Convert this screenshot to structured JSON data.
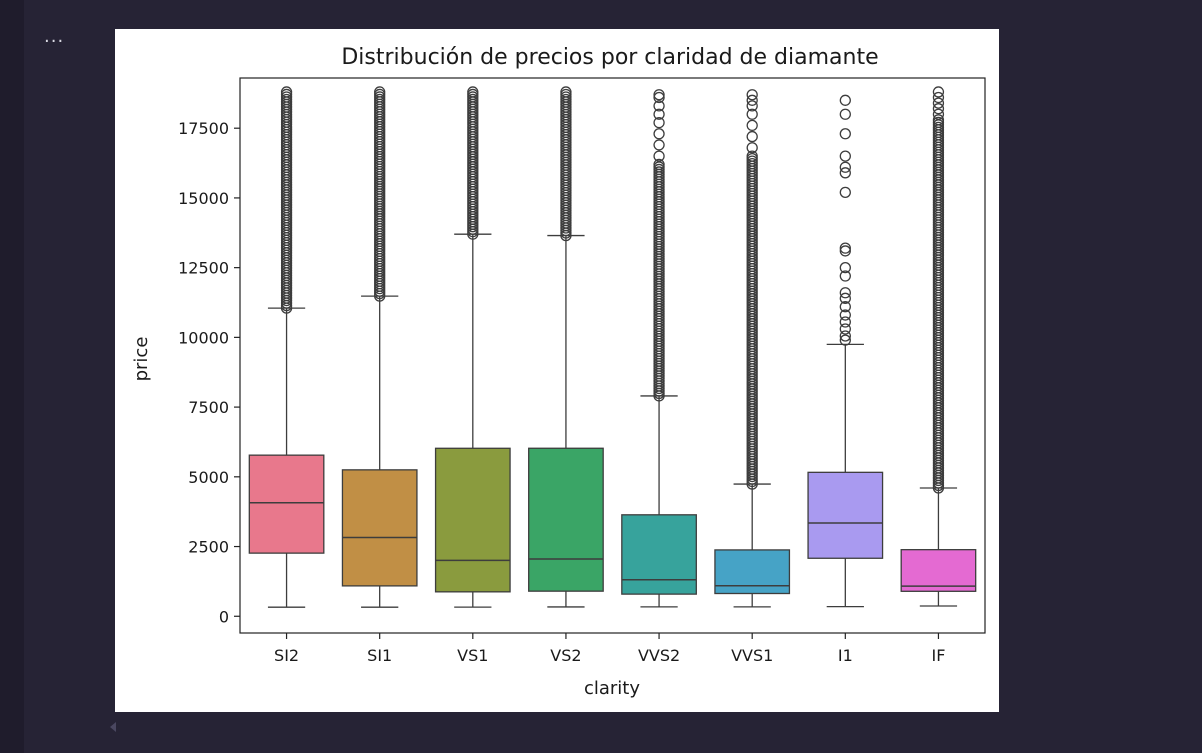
{
  "output_menu_glyph": "...",
  "chart_data": {
    "type": "box",
    "title": "Distribución de precios por claridad de diamante",
    "xlabel": "clarity",
    "ylabel": "price",
    "ylim": [
      -600,
      19300
    ],
    "yticks": [
      0,
      2500,
      5000,
      7500,
      10000,
      12500,
      15000,
      17500
    ],
    "grid": false,
    "categories": [
      "SI2",
      "SI1",
      "VS1",
      "VS2",
      "VVS2",
      "VVS1",
      "I1",
      "IF"
    ],
    "series": [
      {
        "category": "SI2",
        "color": "#e8788c",
        "min": 326,
        "q1": 2264,
        "median": 4072,
        "q3": 5777,
        "whisker_high": 11050,
        "outliers": {
          "dense_from": 11050,
          "dense_to": 18800,
          "sparse": []
        }
      },
      {
        "category": "SI1",
        "color": "#c18f45",
        "min": 326,
        "q1": 1089,
        "median": 2822,
        "q3": 5250,
        "whisker_high": 11480,
        "outliers": {
          "dense_from": 11480,
          "dense_to": 18800,
          "sparse": []
        }
      },
      {
        "category": "VS1",
        "color": "#8a9b3e",
        "min": 327,
        "q1": 876,
        "median": 2005,
        "q3": 6023,
        "whisker_high": 13700,
        "outliers": {
          "dense_from": 13700,
          "dense_to": 18800,
          "sparse": []
        }
      },
      {
        "category": "VS2",
        "color": "#3aa566",
        "min": 334,
        "q1": 900,
        "median": 2054,
        "q3": 6024,
        "whisker_high": 13650,
        "outliers": {
          "dense_from": 13650,
          "dense_to": 18800,
          "sparse": []
        }
      },
      {
        "category": "VVS2",
        "color": "#37a39c",
        "min": 336,
        "q1": 794,
        "median": 1311,
        "q3": 3638,
        "whisker_high": 7900,
        "outliers": {
          "dense_from": 7900,
          "dense_to": 16200,
          "sparse": [
            16500,
            16900,
            17300,
            17700,
            18000,
            18300,
            18600,
            18700
          ]
        }
      },
      {
        "category": "VVS1",
        "color": "#46a3c6",
        "min": 336,
        "q1": 816,
        "median": 1093,
        "q3": 2379,
        "whisker_high": 4740,
        "outliers": {
          "dense_from": 4740,
          "dense_to": 16500,
          "sparse": [
            16800,
            17200,
            17600,
            18000,
            18300,
            18500,
            18700
          ]
        }
      },
      {
        "category": "I1",
        "color": "#a99af0",
        "min": 345,
        "q1": 2080,
        "median": 3344,
        "q3": 5161,
        "whisker_high": 9750,
        "outliers": {
          "dense_from": 9750,
          "dense_to": 9750,
          "sparse": [
            9900,
            10050,
            10300,
            10550,
            10800,
            11100,
            11400,
            11600,
            12200,
            12500,
            13100,
            13200,
            15200,
            15900,
            16100,
            16500,
            17300,
            18000,
            18500
          ]
        }
      },
      {
        "category": "IF",
        "color": "#e46ad2",
        "min": 369,
        "q1": 895,
        "median": 1080,
        "q3": 2388,
        "whisker_high": 4600,
        "outliers": {
          "dense_from": 4600,
          "dense_to": 17800,
          "sparse": [
            18000,
            18200,
            18400,
            18600,
            18800
          ]
        }
      }
    ]
  }
}
